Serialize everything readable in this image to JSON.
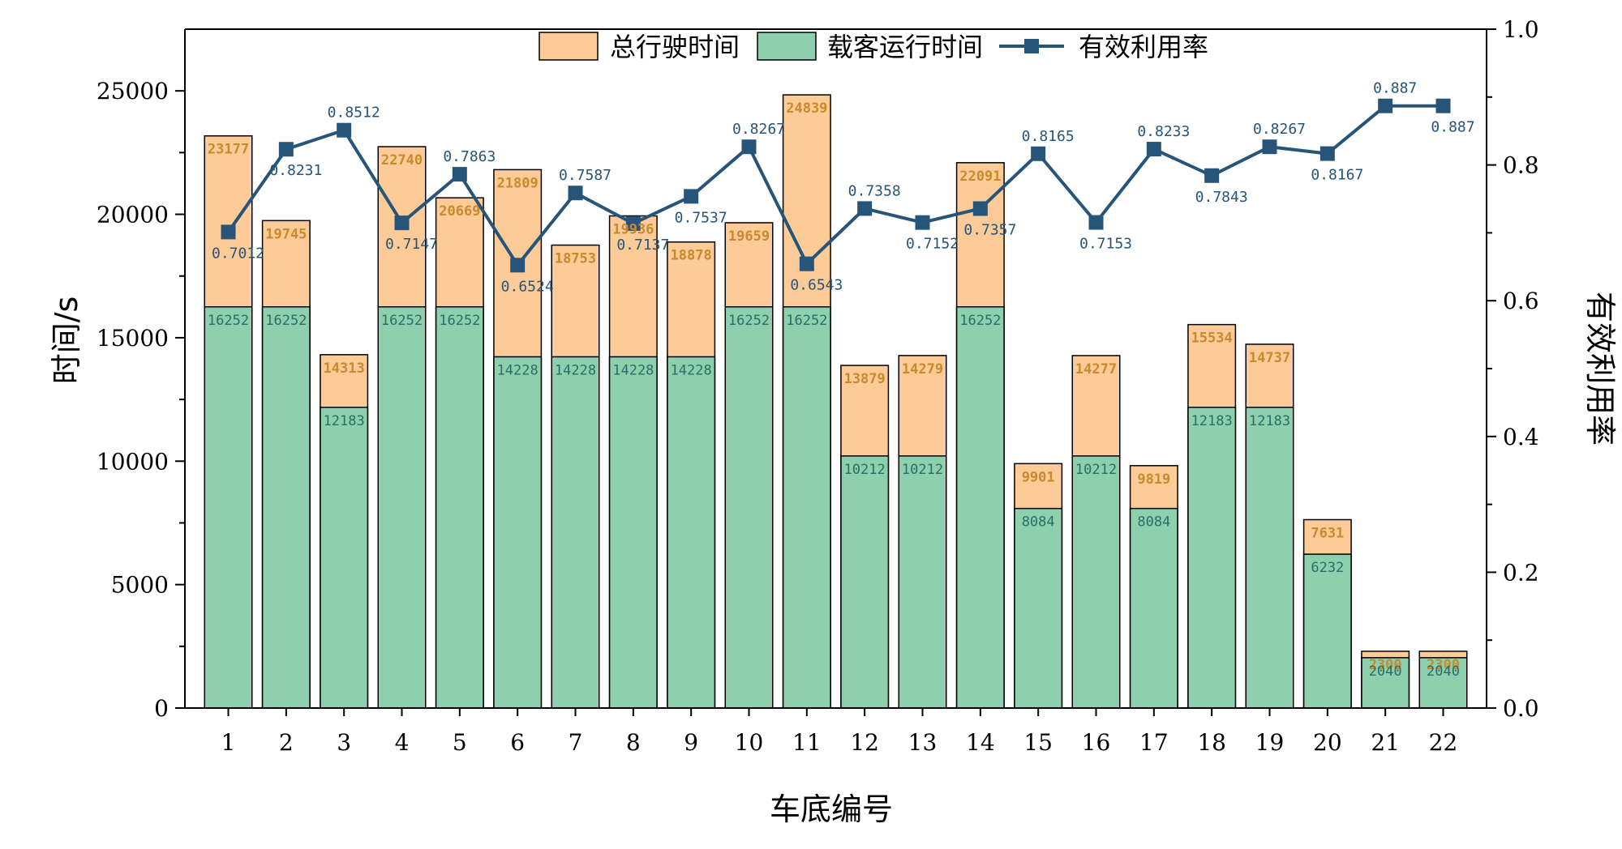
{
  "colors": {
    "total_bar": "#FCCB97",
    "load_bar": "#8ECFAD",
    "line": "#27557A",
    "total_label": "#C88A2C",
    "load_label": "#2B6E67",
    "rate_label": "#27557A"
  },
  "chart_data": {
    "type": "bar",
    "title": "",
    "xlabel": "车底编号",
    "ylabel": "时间/s",
    "y2label": "有效利用率",
    "ylim": [
      0,
      27500
    ],
    "y2lim": [
      0,
      1.0
    ],
    "yticks": [
      "0",
      "5000",
      "10000",
      "15000",
      "20000",
      "25000"
    ],
    "y2ticks": [
      "0.0",
      "0.2",
      "0.4",
      "0.6",
      "0.8",
      "1.0"
    ],
    "grid": false,
    "legend_placement": "top-center",
    "categories": [
      "1",
      "2",
      "3",
      "4",
      "5",
      "6",
      "7",
      "8",
      "9",
      "10",
      "11",
      "12",
      "13",
      "14",
      "15",
      "16",
      "17",
      "18",
      "19",
      "20",
      "21",
      "22"
    ],
    "series": [
      {
        "name": "总行驶时间",
        "kind": "bar",
        "values": [
          23177,
          19745,
          14313,
          22740,
          20669,
          21809,
          18753,
          19936,
          18878,
          19659,
          24839,
          13879,
          14279,
          22091,
          9901,
          14277,
          9819,
          15534,
          14737,
          7631,
          2300,
          2300
        ],
        "labels": [
          "23177",
          "19745",
          "14313",
          "22740",
          "20669",
          "21809",
          "18753",
          "19936",
          "18878",
          "19659",
          "24839",
          "13879",
          "14279",
          "22091",
          "9901",
          "14277",
          "9819",
          "15534",
          "14737",
          "7631",
          "2300",
          "2300"
        ]
      },
      {
        "name": "载客运行时间",
        "kind": "bar",
        "values": [
          16252,
          16252,
          12183,
          16252,
          16252,
          14228,
          14228,
          14228,
          14228,
          16252,
          16252,
          10212,
          10212,
          16252,
          8084,
          10212,
          8084,
          12183,
          12183,
          6232,
          2040,
          2040
        ],
        "labels": [
          "16252",
          "16252",
          "12183",
          "16252",
          "16252",
          "14228",
          "14228",
          "14228",
          "14228",
          "16252",
          "16252",
          "10212",
          "10212",
          "16252",
          "8084",
          "10212",
          "8084",
          "12183",
          "12183",
          "6232",
          "2040",
          "2040"
        ]
      },
      {
        "name": "有效利用率",
        "kind": "line",
        "axis": "right",
        "values": [
          0.7012,
          0.8231,
          0.8512,
          0.7147,
          0.7863,
          0.6524,
          0.7587,
          0.7137,
          0.7537,
          0.8267,
          0.6543,
          0.7358,
          0.7152,
          0.7357,
          0.8165,
          0.7153,
          0.8233,
          0.7843,
          0.8267,
          0.8167,
          0.887,
          0.887
        ],
        "labels": [
          "0.7012",
          "0.8231",
          "0.8512",
          "0.7147",
          "0.7863",
          "0.6524",
          "0.7587",
          "0.7137",
          "0.7537",
          "0.8267",
          "0.6543",
          "0.7358",
          "0.7152",
          "0.7357",
          "0.8165",
          "0.7153",
          "0.8233",
          "0.7843",
          "0.8267",
          "0.8167",
          "0.887",
          "0.887"
        ]
      }
    ]
  }
}
